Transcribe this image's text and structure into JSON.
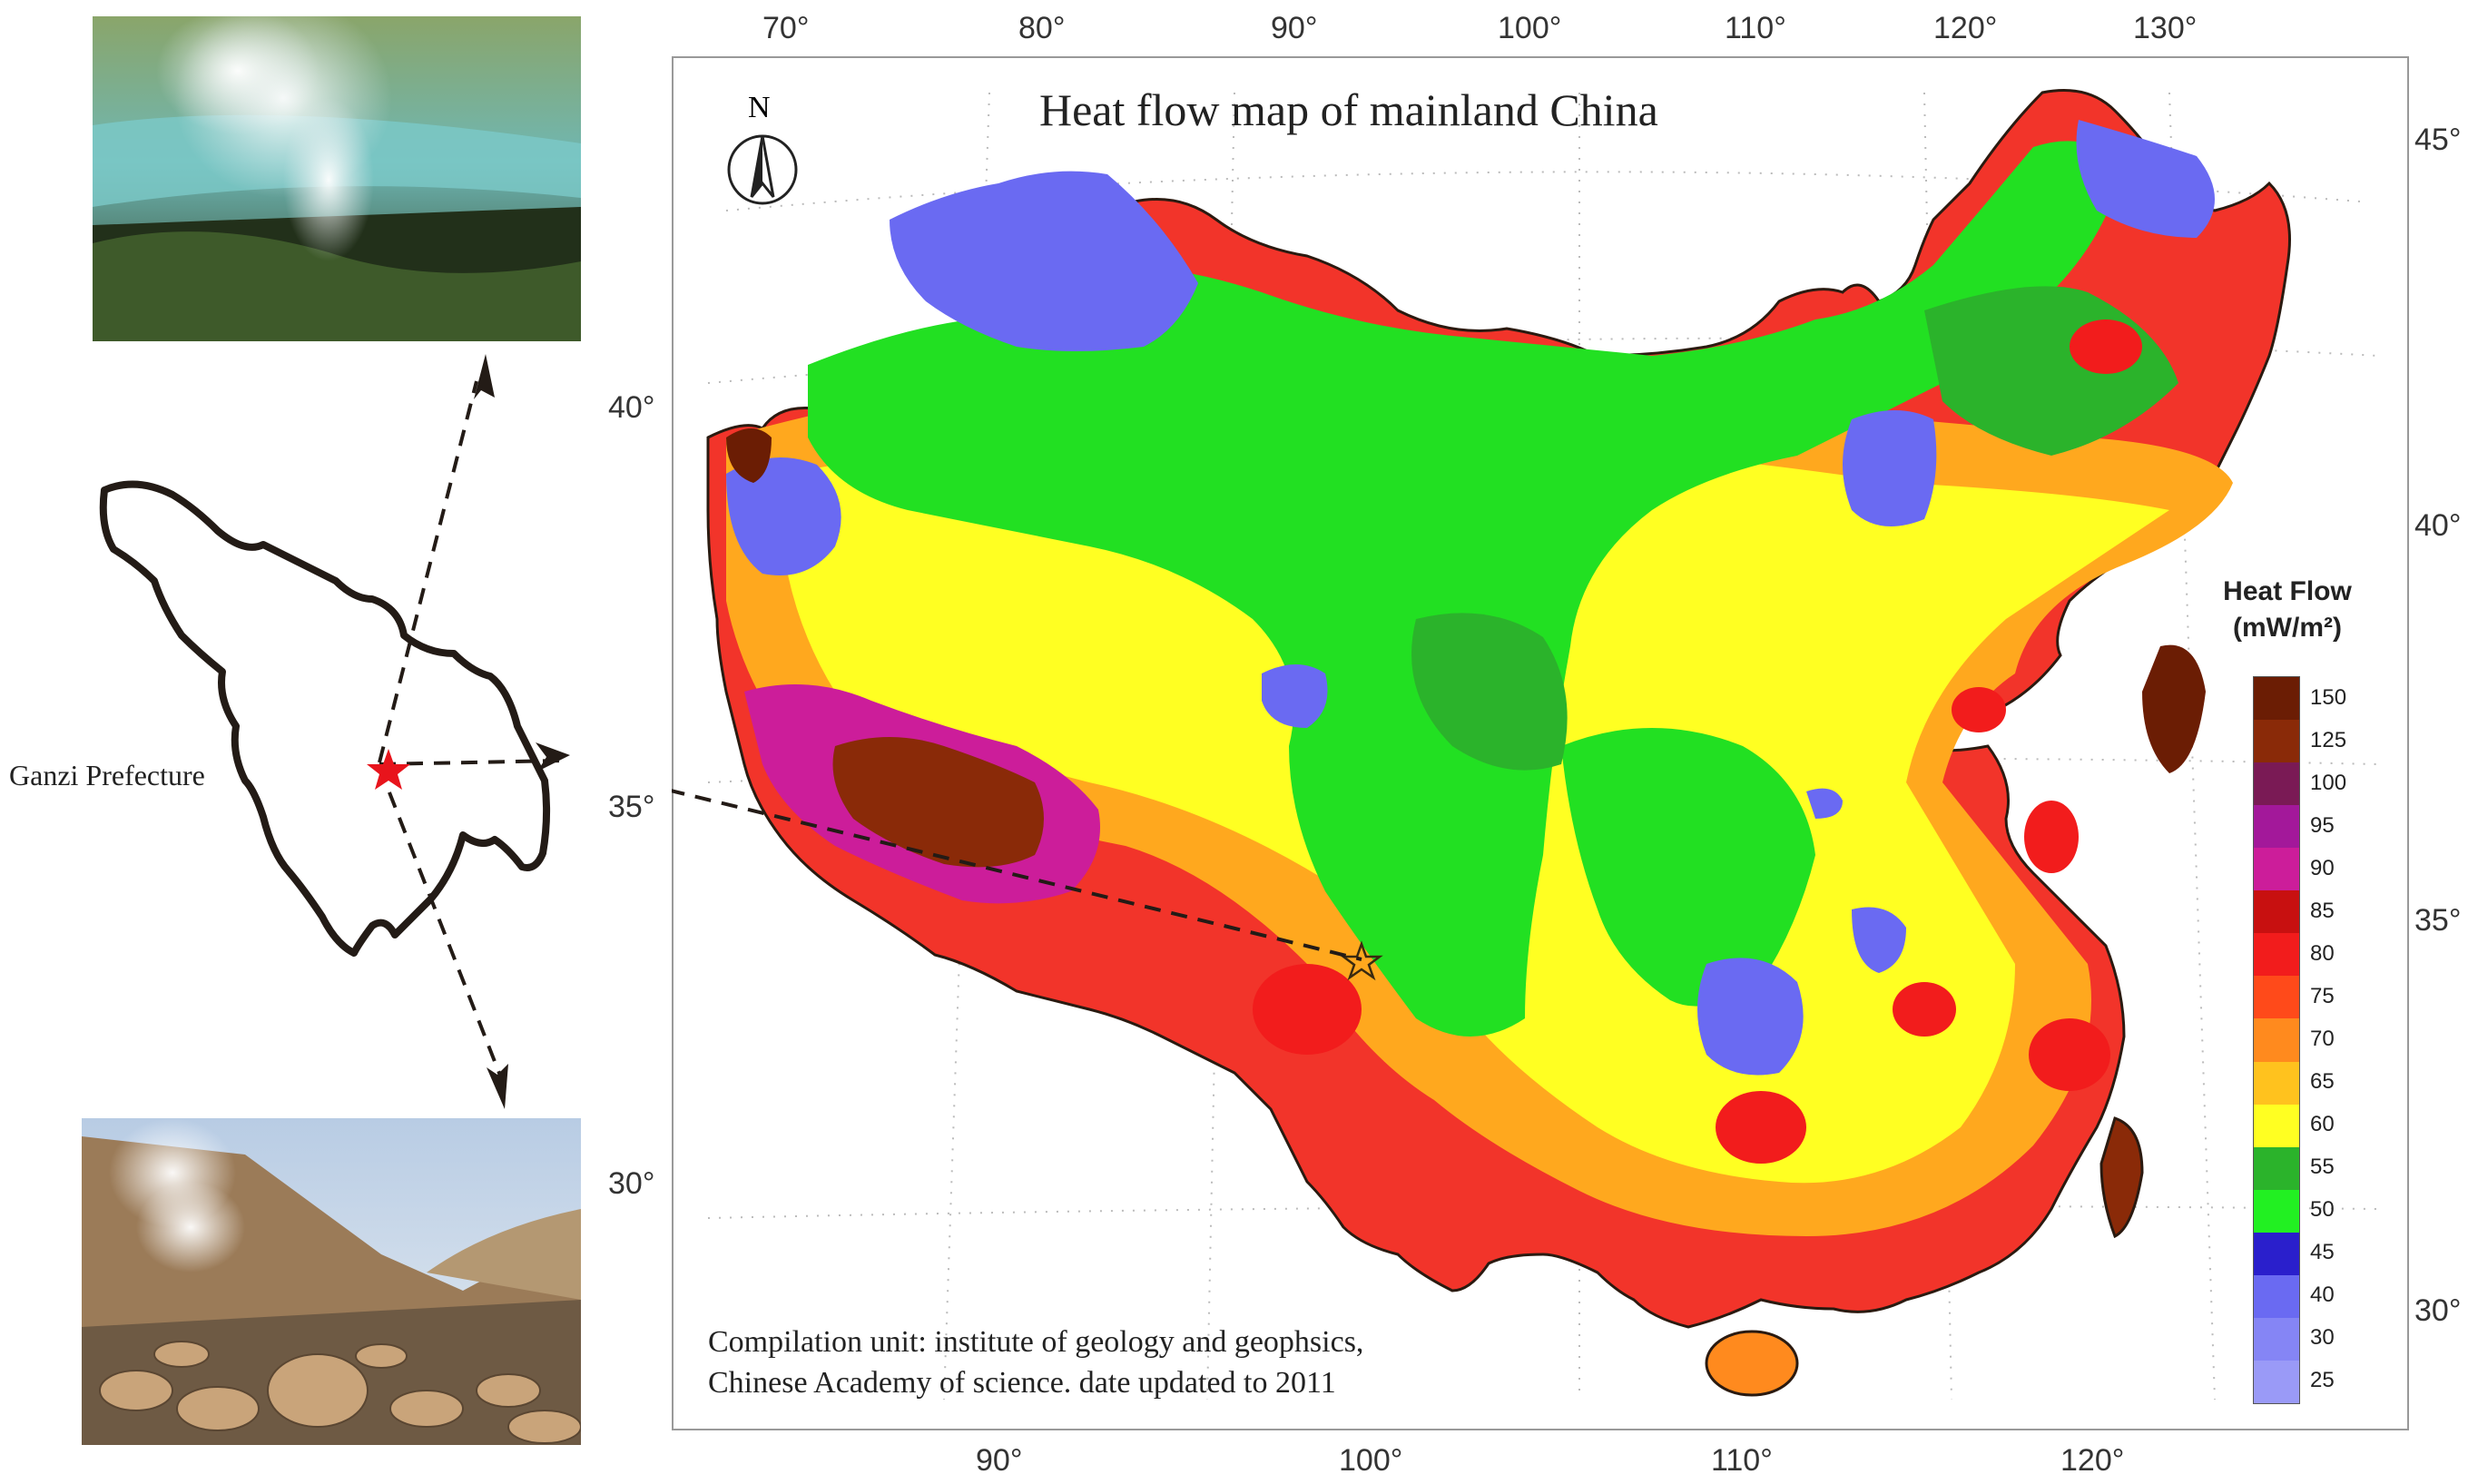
{
  "map": {
    "title": "Heat flow map of mainland China",
    "north_label": "N",
    "credit_line1": "Compilation unit: institute of geology and geophsics,",
    "credit_line2": "Chinese Academy of science. date updated to 2011",
    "top_longitudes": [
      "70°",
      "80°",
      "90°",
      "100°",
      "110°",
      "120°",
      "130°"
    ],
    "bottom_longitudes": [
      "90°",
      "100°",
      "110°",
      "120°"
    ],
    "left_latitudes": [
      "40°",
      "35°",
      "30°"
    ],
    "right_latitudes": [
      "45°",
      "40°",
      "35°",
      "30°"
    ]
  },
  "legend": {
    "title": "Heat Flow",
    "units": "(mW/m²)",
    "labels": [
      "150",
      "125",
      "100",
      "95",
      "90",
      "85",
      "80",
      "75",
      "70",
      "65",
      "60",
      "55",
      "50",
      "45",
      "40",
      "30",
      "25"
    ],
    "colors": [
      "#6b1d04",
      "#8a2a08",
      "#7a1a55",
      "#a3189a",
      "#cc1d9a",
      "#c81010",
      "#f21c1c",
      "#ff4a1a",
      "#ff8a1e",
      "#ffc21e",
      "#ffff22",
      "#2bb32b",
      "#22f022",
      "#2a1fcc",
      "#6a6af2",
      "#8585f5",
      "#9a9af7"
    ]
  },
  "location": {
    "label": "Ganzi Prefecture",
    "marker_color": "#e8141c"
  },
  "photos": {
    "top": "geyser-steam-river-photo",
    "bottom": "hot-spring-steam-valley-photo"
  }
}
